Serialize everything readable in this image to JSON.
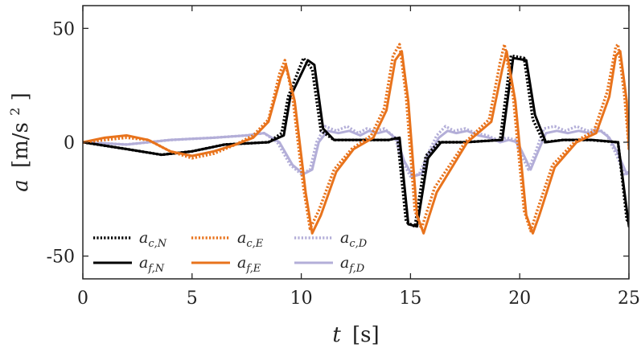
{
  "chart_data": {
    "type": "line",
    "title": "",
    "xlabel": {
      "symbol": "t",
      "unit": "[s]"
    },
    "ylabel": {
      "symbol": "a",
      "unit": "[m/s",
      "unit_sup": "2",
      "unit_end": "]"
    },
    "xlim": [
      0,
      25
    ],
    "ylim": [
      -60,
      60
    ],
    "xticks": [
      0,
      5,
      10,
      15,
      20,
      25
    ],
    "yticks": [
      -50,
      0,
      50
    ],
    "xtick_labels": [
      "0",
      "5",
      "10",
      "15",
      "20",
      "25"
    ],
    "ytick_labels": [
      "-50",
      "0",
      "50"
    ],
    "grid": false,
    "legend_position": "bottom-left",
    "colors": {
      "N": "#000000",
      "E": "#e8731c",
      "D": "#b3aed8"
    },
    "series": [
      {
        "name": "a_c,N",
        "base": "a",
        "sub": "c,N",
        "component": "N",
        "style": "dotted",
        "x": [
          0,
          2,
          3.6,
          5,
          6.5,
          8.5,
          9.1,
          9.4,
          10.1,
          10.5,
          10.9,
          11.5,
          12.5,
          14,
          14.4,
          14.8,
          15.2,
          15.7,
          16.3,
          17.5,
          19.1,
          19.6,
          20.2,
          20.6,
          21.1,
          22,
          23.2,
          24.5,
          24.9,
          25
        ],
        "y": [
          0,
          -3,
          -5.5,
          -4,
          -1,
          0,
          4,
          20,
          37,
          32,
          5,
          1,
          1,
          1,
          2,
          -35,
          -37,
          -6,
          0,
          0,
          1,
          38,
          37,
          10,
          0,
          1,
          1,
          0,
          -34,
          -35
        ]
      },
      {
        "name": "a_f,N",
        "base": "a",
        "sub": "f,N",
        "component": "N",
        "style": "solid",
        "x": [
          0,
          2,
          3.6,
          5,
          6.5,
          8.5,
          9.2,
          9.5,
          10.3,
          10.6,
          11,
          11.5,
          12.5,
          14,
          14.5,
          14.9,
          15.3,
          15.8,
          16.4,
          17.5,
          19.2,
          19.7,
          20.3,
          20.7,
          21.2,
          22,
          23.3,
          24.5,
          25
        ],
        "y": [
          0,
          -3,
          -5.5,
          -4,
          -1,
          0,
          3,
          20,
          36,
          34,
          6,
          1,
          1,
          1,
          2,
          -36,
          -37,
          -7,
          0,
          0,
          1,
          37,
          36,
          12,
          0,
          1,
          1,
          0,
          -37
        ]
      },
      {
        "name": "a_c,E",
        "base": "a",
        "sub": "c,E",
        "component": "E",
        "style": "dotted",
        "x": [
          0,
          1,
          2,
          3,
          4,
          5,
          6,
          7,
          7.8,
          8.5,
          9,
          9.25,
          9.6,
          10.1,
          10.4,
          10.8,
          11.5,
          12.3,
          13.2,
          13.8,
          14.2,
          14.5,
          14.8,
          15.2,
          15.5,
          16.1,
          17.5,
          18.6,
          19.1,
          19.3,
          19.7,
          20.2,
          20.5,
          20.8,
          21.5,
          22.5,
          23.4,
          24,
          24.4,
          24.5,
          24.8,
          25
        ],
        "y": [
          0,
          1,
          2,
          1,
          -4,
          -7,
          -5,
          -1,
          3,
          10,
          30,
          36,
          20,
          -20,
          -38,
          -30,
          -12,
          -3,
          3,
          15,
          38,
          43,
          20,
          -30,
          -38,
          -20,
          0,
          10,
          35,
          43,
          20,
          -30,
          -39,
          -30,
          -10,
          0,
          5,
          22,
          42,
          43,
          20,
          -3
        ]
      },
      {
        "name": "a_f,E",
        "base": "a",
        "sub": "f,E",
        "component": "E",
        "style": "solid",
        "x": [
          0,
          1,
          2,
          3,
          4,
          5,
          6,
          7,
          7.8,
          8.5,
          9.05,
          9.3,
          9.7,
          10.2,
          10.5,
          10.9,
          11.6,
          12.4,
          13.3,
          13.9,
          14.3,
          14.6,
          14.9,
          15.3,
          15.6,
          16.2,
          17.6,
          18.7,
          19.2,
          19.4,
          19.8,
          20.3,
          20.6,
          20.9,
          21.6,
          22.6,
          23.5,
          24.1,
          24.4,
          24.6,
          24.9,
          25
        ],
        "y": [
          0,
          2,
          3,
          1,
          -4,
          -6,
          -4,
          -1,
          2,
          9,
          28,
          34,
          18,
          -22,
          -40,
          -32,
          -13,
          -3,
          2,
          14,
          36,
          40,
          18,
          -32,
          -40,
          -22,
          0,
          9,
          32,
          40,
          18,
          -32,
          -40,
          -32,
          -11,
          0,
          4,
          20,
          38,
          40,
          18,
          -3
        ]
      },
      {
        "name": "a_c,D",
        "base": "a",
        "sub": "c,D",
        "component": "D",
        "style": "dotted",
        "x": [
          0,
          2,
          4,
          6,
          7.5,
          8.3,
          8.9,
          9.5,
          10,
          10.4,
          10.7,
          11.1,
          11.6,
          12.1,
          12.6,
          13,
          13.4,
          13.8,
          14.3,
          14.6,
          15,
          15.4,
          15.8,
          16.2,
          16.6,
          17,
          17.5,
          18,
          18.5,
          19,
          19.4,
          19.8,
          20.1,
          20.4,
          20.7,
          21.1,
          21.6,
          22.1,
          22.6,
          23.1,
          23.6,
          24,
          24.4,
          24.8,
          25
        ],
        "y": [
          0,
          -1,
          1,
          2,
          3,
          4,
          0,
          -10,
          -14,
          -12,
          0,
          7,
          5,
          7,
          4,
          6,
          5,
          6,
          2,
          -8,
          -15,
          -14,
          -5,
          3,
          7,
          5,
          6,
          4,
          3,
          1,
          2,
          1,
          -6,
          -12,
          -5,
          6,
          7,
          5,
          7,
          5,
          6,
          3,
          -5,
          -14,
          -13
        ]
      },
      {
        "name": "a_f,D",
        "base": "a",
        "sub": "f,D",
        "component": "D",
        "style": "solid",
        "x": [
          0,
          2,
          4,
          6,
          7.5,
          8.3,
          9,
          9.6,
          10.1,
          10.5,
          10.8,
          11.2,
          11.7,
          12.2,
          12.7,
          13.1,
          13.5,
          13.9,
          14.4,
          14.7,
          15.1,
          15.5,
          15.9,
          16.3,
          16.7,
          17.1,
          17.6,
          18.1,
          18.6,
          19.1,
          19.5,
          19.9,
          20.2,
          20.5,
          20.8,
          21.2,
          21.7,
          22.2,
          22.7,
          23.2,
          23.7,
          24.1,
          24.5,
          24.9,
          25
        ],
        "y": [
          0,
          -1,
          1,
          2,
          3,
          4,
          0,
          -10,
          -14,
          -12,
          0,
          5,
          4,
          5,
          3,
          5,
          4,
          5,
          1,
          -8,
          -15,
          -14,
          -5,
          2,
          5,
          4,
          5,
          3,
          2,
          0,
          1,
          0,
          -6,
          -12,
          -5,
          4,
          5,
          4,
          5,
          4,
          5,
          2,
          -5,
          -14,
          -13
        ]
      }
    ],
    "legend_order": [
      0,
      2,
      4,
      1,
      3,
      5
    ]
  }
}
